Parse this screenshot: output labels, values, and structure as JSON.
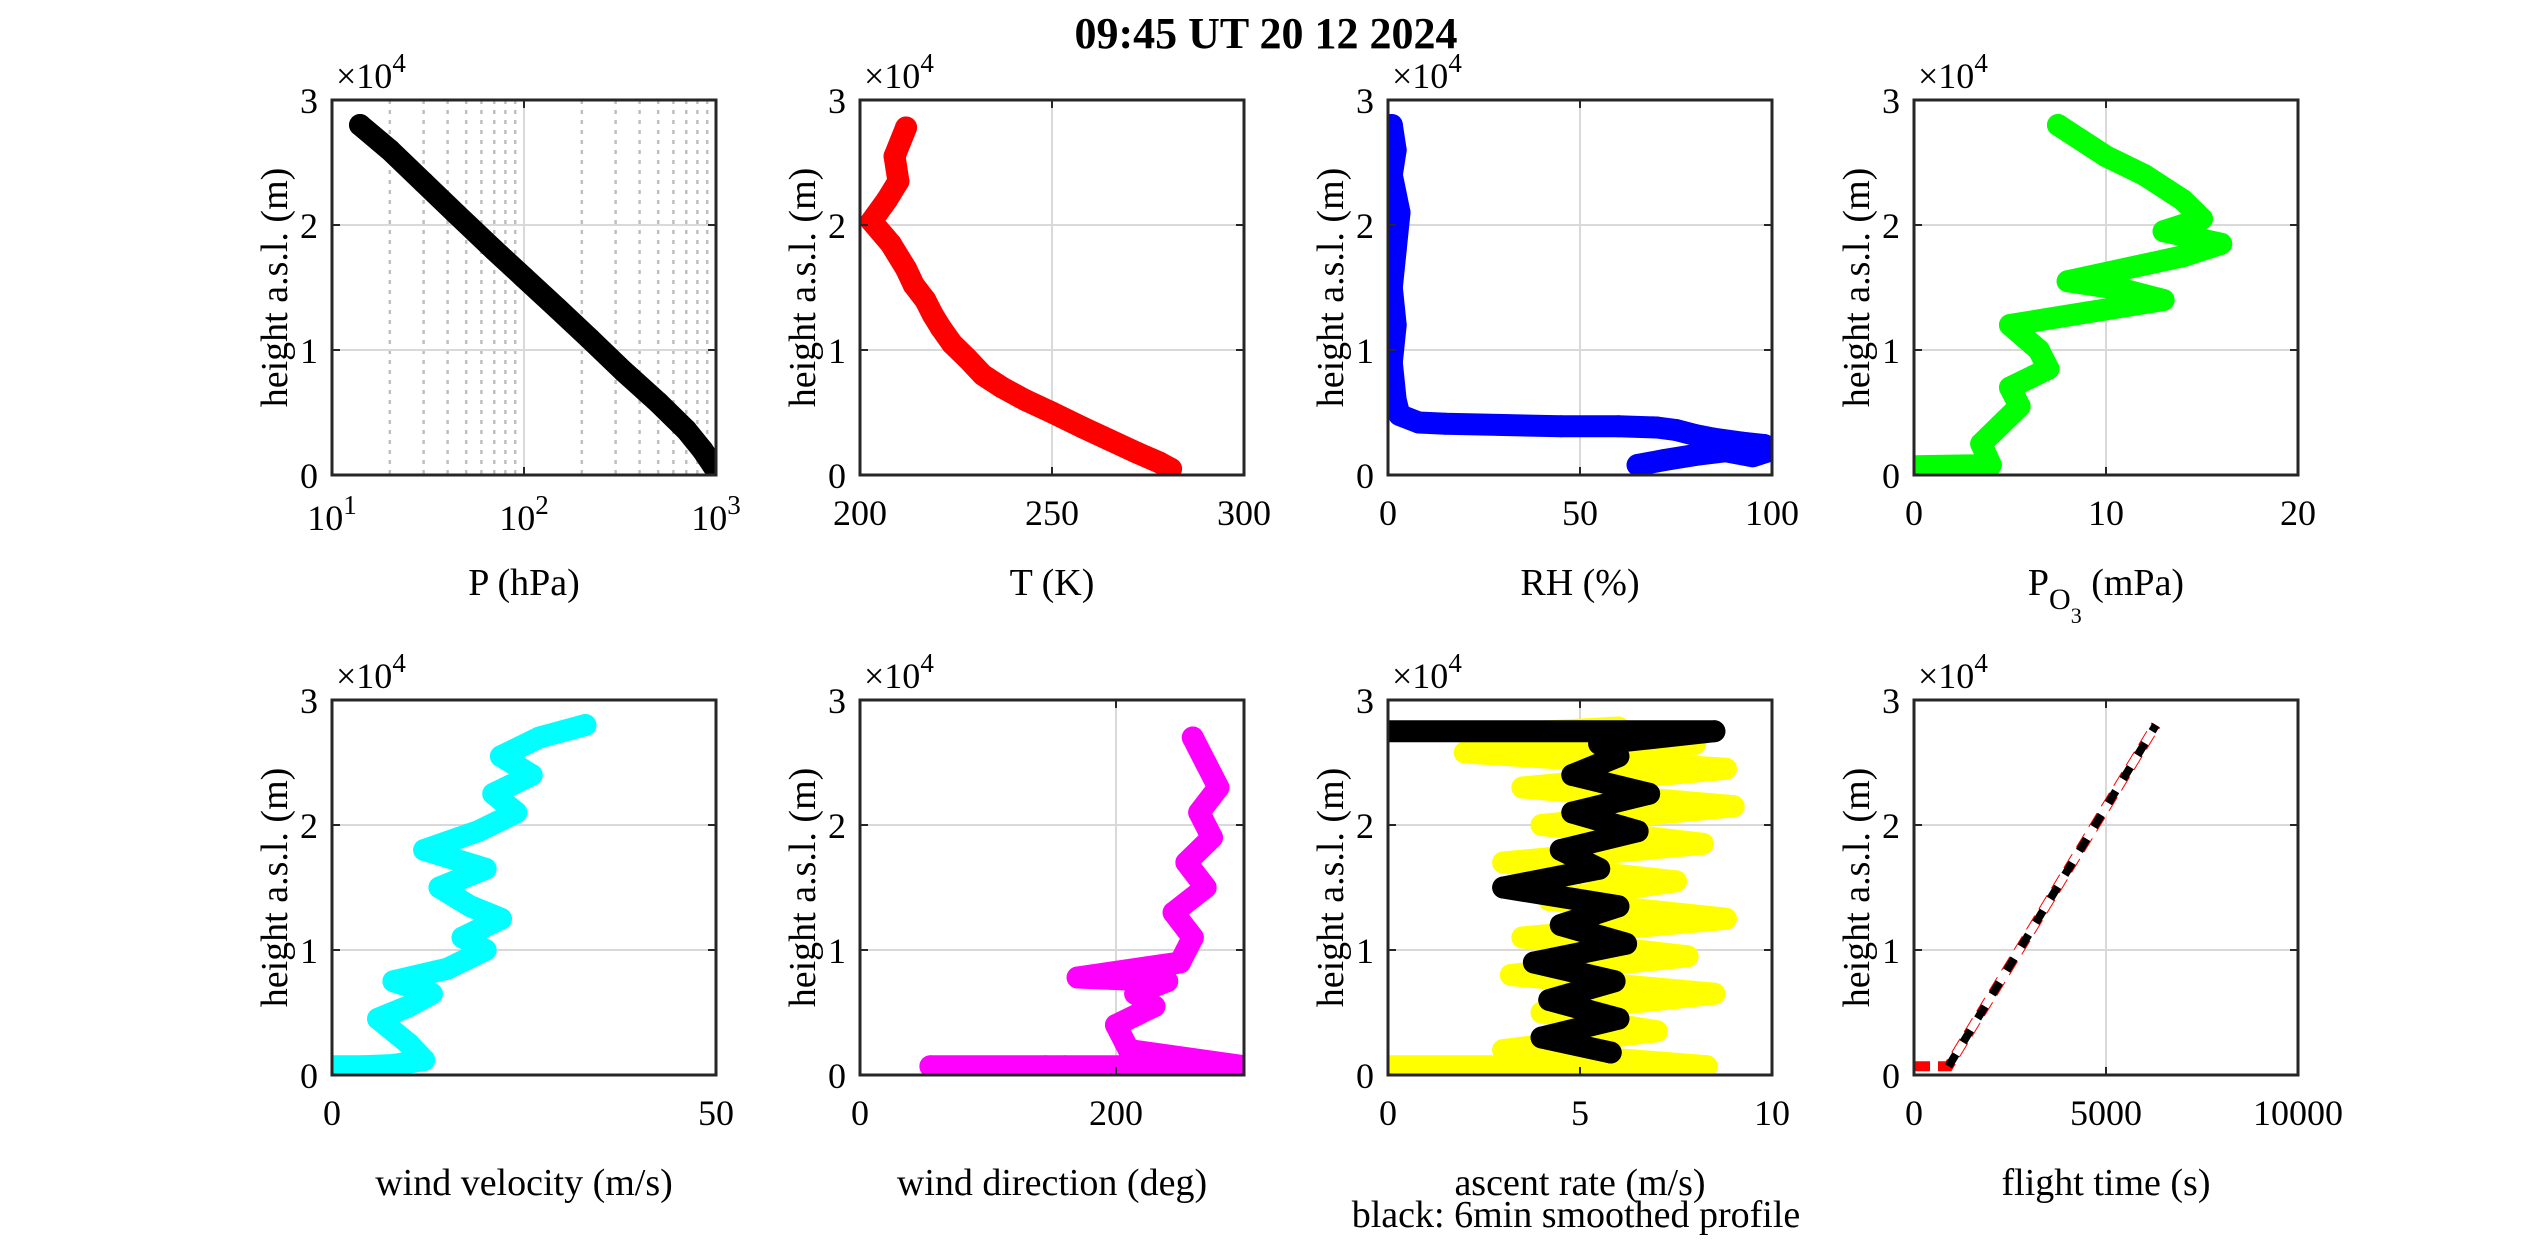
{
  "title": "09:45 UT  20 12 2024",
  "footnote": "black: 6min smoothed profile",
  "chart_data": [
    {
      "type": "scatter",
      "xlabel": "P (hPa)",
      "ylabel": "height a.s.l. (m)",
      "xscale": "log",
      "xlim": [
        10,
        1000
      ],
      "ylim": [
        0,
        30000
      ],
      "y_multiplier": "×10^4",
      "grid": "log-minor",
      "xticks": [
        10,
        100,
        1000
      ],
      "xticklabels": [
        "10^1",
        "10^2",
        "10^3"
      ],
      "yticks": [
        0,
        10000,
        20000,
        30000
      ],
      "yticklabels": [
        "0",
        "1",
        "2",
        "3"
      ],
      "series": [
        {
          "color": "#000000",
          "x": [
            14,
            20,
            30,
            45,
            70,
            100,
            150,
            220,
            330,
            500,
            700,
            850,
            970
          ],
          "y": [
            28000,
            26000,
            23400,
            20800,
            18000,
            15800,
            13300,
            10900,
            8300,
            5800,
            3600,
            2000,
            700
          ]
        }
      ]
    },
    {
      "type": "scatter",
      "xlabel": "T (K)",
      "ylabel": "height a.s.l. (m)",
      "xlim": [
        200,
        300
      ],
      "ylim": [
        0,
        30000
      ],
      "y_multiplier": "×10^4",
      "grid": true,
      "xticks": [
        200,
        250,
        300
      ],
      "xticklabels": [
        "200",
        "250",
        "300"
      ],
      "yticks": [
        0,
        10000,
        20000,
        30000
      ],
      "yticklabels": [
        "0",
        "1",
        "2",
        "3"
      ],
      "series": [
        {
          "color": "#ff0000",
          "x": [
            281,
            278,
            272,
            265,
            258,
            250,
            243,
            237,
            232,
            228,
            224,
            221,
            219,
            217,
            214,
            212,
            208,
            203,
            207,
            210,
            209,
            212
          ],
          "y": [
            500,
            1000,
            1800,
            2800,
            3800,
            5000,
            6000,
            7000,
            8000,
            9300,
            10500,
            11800,
            12800,
            14000,
            15200,
            16500,
            18500,
            20300,
            22000,
            23500,
            25500,
            27800
          ]
        }
      ]
    },
    {
      "type": "scatter",
      "xlabel": "RH (%)",
      "ylabel": "height a.s.l. (m)",
      "xlim": [
        0,
        100
      ],
      "ylim": [
        0,
        30000
      ],
      "y_multiplier": "×10^4",
      "grid": true,
      "xticks": [
        0,
        50,
        100
      ],
      "xticklabels": [
        "0",
        "50",
        "100"
      ],
      "yticks": [
        0,
        10000,
        20000,
        30000
      ],
      "yticklabels": [
        "0",
        "1",
        "2",
        "3"
      ],
      "series": [
        {
          "color": "#0000ff",
          "x": [
            65,
            72,
            80,
            88,
            95,
            100,
            98,
            92,
            85,
            80,
            75,
            70,
            60,
            45,
            30,
            15,
            8,
            3,
            2,
            1,
            2,
            1,
            2,
            3,
            1,
            2,
            1
          ],
          "y": [
            800,
            1200,
            1600,
            1900,
            1500,
            2000,
            2400,
            2600,
            2900,
            3200,
            3600,
            3800,
            3900,
            3900,
            4000,
            4100,
            4200,
            4800,
            6000,
            9000,
            12000,
            15000,
            18000,
            21000,
            24000,
            26000,
            28000
          ]
        }
      ]
    },
    {
      "type": "scatter",
      "xlabel": "P_O3 (mPa)",
      "ylabel": "height a.s.l. (m)",
      "xlim": [
        0,
        20
      ],
      "ylim": [
        0,
        30000
      ],
      "y_multiplier": "×10^4",
      "grid": true,
      "xticks": [
        0,
        10,
        20
      ],
      "xticklabels": [
        "0",
        "10",
        "20"
      ],
      "yticks": [
        0,
        10000,
        20000,
        30000
      ],
      "yticklabels": [
        "0",
        "1",
        "2",
        "3"
      ],
      "series": [
        {
          "color": "#00ff00",
          "x": [
            0,
            4,
            3.5,
            4.5,
            5.5,
            5,
            7,
            6.5,
            5,
            9,
            13,
            11,
            8,
            11,
            14,
            16,
            13,
            15,
            14,
            12,
            10,
            8.5,
            7.5
          ],
          "y": [
            700,
            800,
            2500,
            4000,
            5500,
            7000,
            8500,
            10000,
            12000,
            13000,
            14000,
            14800,
            15500,
            16500,
            17500,
            18500,
            19500,
            20500,
            22000,
            24000,
            25500,
            27000,
            28000
          ]
        }
      ]
    },
    {
      "type": "scatter",
      "xlabel": "wind velocity (m/s)",
      "ylabel": "height a.s.l. (m)",
      "xlim": [
        0,
        50
      ],
      "ylim": [
        0,
        30000
      ],
      "y_multiplier": "×10^4",
      "grid": true,
      "xticks": [
        0,
        50
      ],
      "xticklabels": [
        "0",
        "50"
      ],
      "yticks": [
        0,
        10000,
        20000,
        30000
      ],
      "yticklabels": [
        "0",
        "1",
        "2",
        "3"
      ],
      "series": [
        {
          "color": "#00ffff",
          "x": [
            0,
            4,
            8,
            12,
            10,
            8,
            6,
            10,
            13,
            8,
            15,
            20,
            17,
            22,
            18,
            14,
            20,
            12,
            19,
            24,
            21,
            26,
            22,
            27,
            33
          ],
          "y": [
            700,
            700,
            800,
            1200,
            2500,
            3500,
            4500,
            5500,
            6500,
            7500,
            8500,
            10000,
            11000,
            12500,
            13500,
            15000,
            16500,
            18000,
            19500,
            21000,
            22500,
            24000,
            25500,
            27000,
            28000
          ]
        }
      ]
    },
    {
      "type": "scatter",
      "xlabel": "wind direction (deg)",
      "ylabel": "height a.s.l. (m)",
      "xlim": [
        0,
        300
      ],
      "ylim": [
        0,
        30000
      ],
      "y_multiplier": "×10^4",
      "grid": true,
      "xticks": [
        0,
        200
      ],
      "xticklabels": [
        "0",
        "200"
      ],
      "yticks": [
        0,
        10000,
        20000,
        30000
      ],
      "yticklabels": [
        "0",
        "1",
        "2",
        "3"
      ],
      "series": [
        {
          "color": "#ff00ff",
          "x": [
            55,
            145,
            160,
            205,
            260,
            280,
            300,
            210,
            200,
            230,
            215,
            240,
            170,
            250,
            260,
            245,
            270,
            255,
            275,
            265,
            280,
            270,
            260
          ],
          "y": [
            700,
            700,
            700,
            700,
            700,
            700,
            700,
            2000,
            4000,
            5500,
            6500,
            7500,
            7800,
            9000,
            11000,
            13000,
            15000,
            17000,
            19000,
            21000,
            23000,
            25000,
            27000
          ]
        }
      ]
    },
    {
      "type": "scatter",
      "xlabel": "ascent rate (m/s)",
      "ylabel": "height a.s.l. (m)",
      "xlim": [
        0,
        10
      ],
      "ylim": [
        0,
        30000
      ],
      "y_multiplier": "×10^4",
      "grid": true,
      "xticks": [
        0,
        5,
        10
      ],
      "xticklabels": [
        "0",
        "5",
        "10"
      ],
      "yticks": [
        0,
        10000,
        20000,
        30000
      ],
      "yticklabels": [
        "0",
        "1",
        "2",
        "3"
      ],
      "series": [
        {
          "color": "#ffff00",
          "x": [
            0,
            8.3,
            3,
            7,
            4,
            8.5,
            3.2,
            7.8,
            3.5,
            8.8,
            4.2,
            7.5,
            3,
            8.2,
            4,
            9,
            3.5,
            8.8,
            2,
            8,
            3,
            6
          ],
          "y": [
            700,
            700,
            2000,
            3500,
            5000,
            6500,
            8000,
            9500,
            11000,
            12500,
            14000,
            15500,
            17000,
            18500,
            20000,
            21500,
            23000,
            24500,
            25800,
            26500,
            27300,
            27800
          ]
        },
        {
          "color": "#000000",
          "x": [
            5.8,
            4.0,
            6.0,
            4.2,
            5.9,
            3.8,
            6.2,
            4.5,
            6.0,
            3.0,
            5.5,
            4.5,
            6.5,
            4.8,
            6.8,
            4.8,
            6.0,
            5.5,
            8.5,
            0
          ],
          "y": [
            1800,
            3000,
            4500,
            6000,
            7500,
            9000,
            10500,
            12000,
            13500,
            15000,
            16500,
            18000,
            19500,
            21000,
            22500,
            24000,
            25500,
            26500,
            27500,
            27500
          ]
        }
      ]
    },
    {
      "type": "scatter",
      "xlabel": "flight time (s)",
      "ylabel": "height a.s.l. (m)",
      "xlim": [
        0,
        10000
      ],
      "ylim": [
        0,
        30000
      ],
      "y_multiplier": "×10^4",
      "grid": true,
      "xticks": [
        0,
        5000,
        10000
      ],
      "xticklabels": [
        "0",
        "5000",
        "10000"
      ],
      "yticks": [
        0,
        10000,
        20000,
        30000
      ],
      "yticklabels": [
        "0",
        "1",
        "2",
        "3"
      ],
      "series": [
        {
          "color": "#ff0000",
          "style": "dashed",
          "x": [
            0,
            900,
            6300
          ],
          "y": [
            700,
            700,
            28000
          ]
        },
        {
          "color": "#000000",
          "style": "dashed-white",
          "x": [
            900,
            6300
          ],
          "y": [
            700,
            28000
          ]
        }
      ]
    }
  ]
}
